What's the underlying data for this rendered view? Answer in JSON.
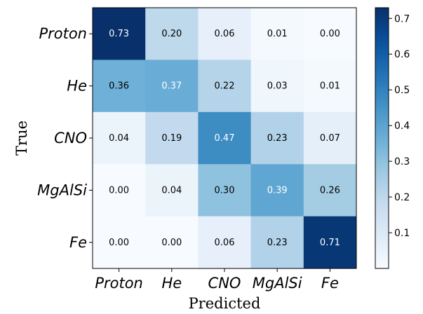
{
  "chart_data": {
    "type": "heatmap",
    "xlabel": "Predicted",
    "ylabel": "True",
    "x_categories": [
      "Proton",
      "He",
      "CNO",
      "MgAlSi",
      "Fe"
    ],
    "y_categories": [
      "Proton",
      "He",
      "CNO",
      "MgAlSi",
      "Fe"
    ],
    "values": [
      [
        0.73,
        0.2,
        0.06,
        0.01,
        0.0
      ],
      [
        0.36,
        0.37,
        0.22,
        0.03,
        0.01
      ],
      [
        0.04,
        0.19,
        0.47,
        0.23,
        0.07
      ],
      [
        0.0,
        0.04,
        0.3,
        0.39,
        0.26
      ],
      [
        0.0,
        0.0,
        0.06,
        0.23,
        0.71
      ]
    ],
    "colormap": "Blues",
    "vmin": 0.0,
    "vmax": 0.73,
    "colorbar_ticks": [
      0.1,
      0.2,
      0.3,
      0.4,
      0.5,
      0.6,
      0.7
    ],
    "colorbar_tick_labels": [
      "0.1",
      "0.2",
      "0.3",
      "0.4",
      "0.5",
      "0.6",
      "0.7"
    ]
  }
}
